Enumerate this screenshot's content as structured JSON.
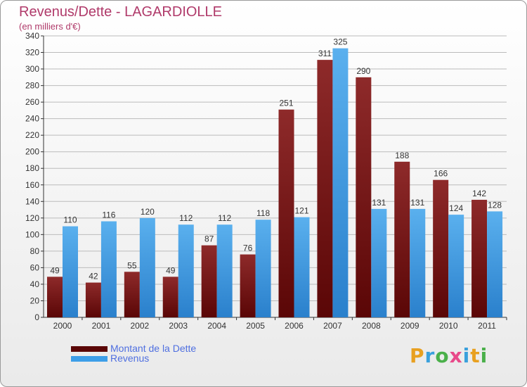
{
  "header": {
    "title": "Revenus/Dette - LAGARDIOLLE",
    "subtitle": "(en milliers d'€)"
  },
  "legend": [
    {
      "label": "Montant de la Dette",
      "color": "#7a1010"
    },
    {
      "label": "Revenus",
      "color": "#3d9ee8"
    }
  ],
  "logo": {
    "text": "Proxiti",
    "colors": [
      "#e8a020",
      "#3aa0dc",
      "#4ab04a",
      "#e84a8a",
      "#3aa0dc",
      "#e8a020",
      "#4ab04a"
    ]
  },
  "colors": {
    "debt_top": "#8e2a2a",
    "debt_bottom": "#5a0606",
    "rev_top": "#5ab0ee",
    "rev_bottom": "#2a80cc",
    "axis": "#333333",
    "grid": "#bbbbbb",
    "text": "#333333"
  },
  "chart_data": {
    "type": "bar",
    "categories": [
      "2000",
      "2001",
      "2002",
      "2003",
      "2004",
      "2005",
      "2006",
      "2007",
      "2008",
      "2009",
      "2010",
      "2011"
    ],
    "series": [
      {
        "name": "Montant de la Dette",
        "values": [
          49,
          42,
          55,
          49,
          87,
          76,
          251,
          311,
          290,
          188,
          166,
          142
        ]
      },
      {
        "name": "Revenus",
        "values": [
          110,
          116,
          120,
          112,
          112,
          118,
          121,
          325,
          131,
          131,
          124,
          128
        ]
      }
    ],
    "ylim": [
      0,
      340
    ],
    "ytick_step": 20,
    "grid": true,
    "legend_position": "bottom-left"
  }
}
